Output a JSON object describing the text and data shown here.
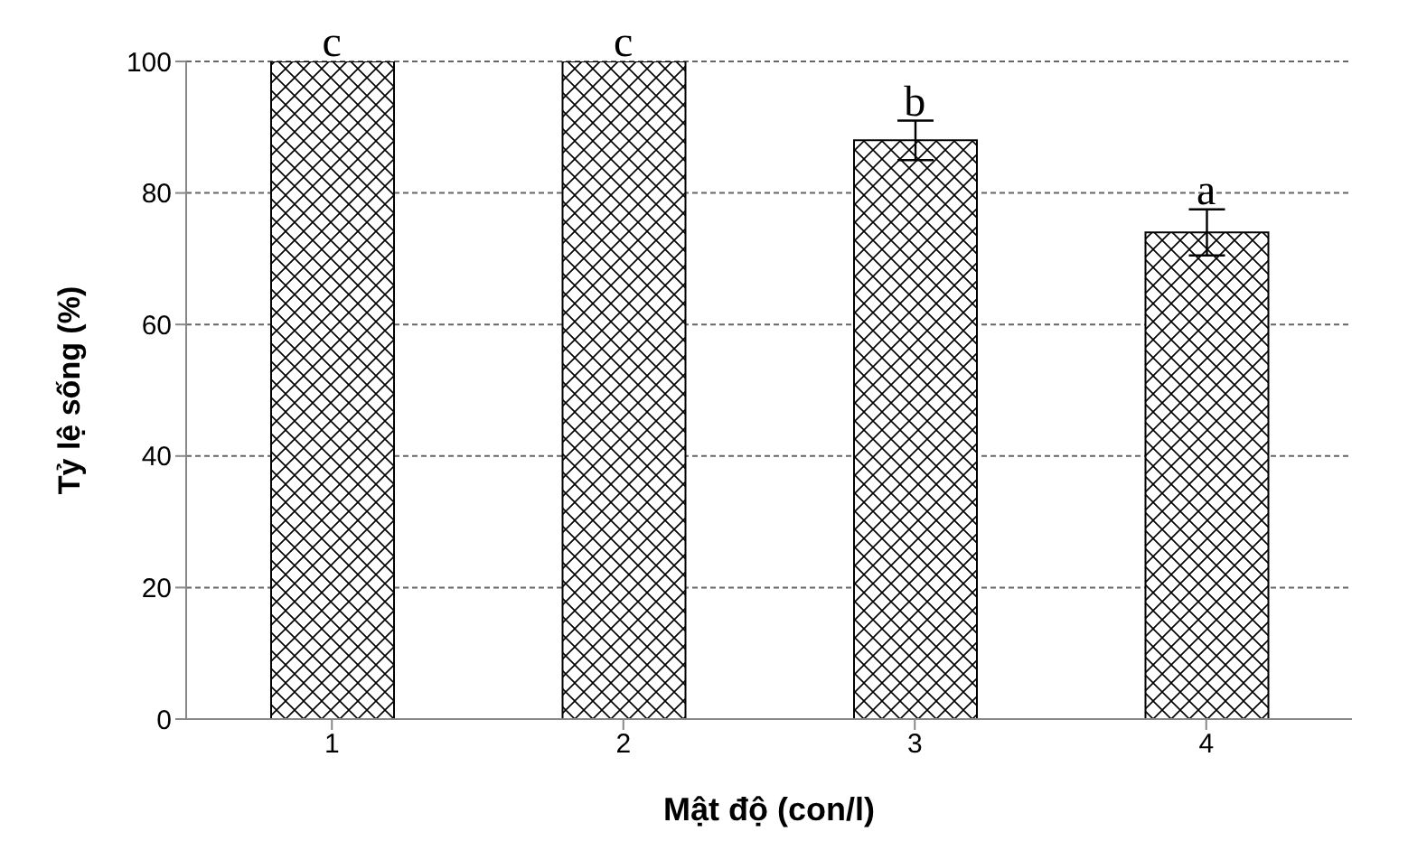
{
  "chart_data": {
    "type": "bar",
    "xlabel": "Mật độ (con/l)",
    "ylabel": "Tỷ lệ sống (%)",
    "categories": [
      "1",
      "2",
      "3",
      "4"
    ],
    "values": [
      100,
      100,
      88,
      74
    ],
    "errors": [
      null,
      null,
      3,
      3.5
    ],
    "color": "#000000",
    "ylim": [
      0,
      100
    ],
    "yticks": [
      0,
      20,
      40,
      60,
      80,
      100
    ],
    "grid": "y",
    "annotations": [
      {
        "text": "c",
        "x": "1",
        "y": 100
      },
      {
        "text": "c",
        "x": "2",
        "y": 100
      },
      {
        "text": "b",
        "x": "3",
        "y": 88
      },
      {
        "text": "a",
        "x": "4",
        "y": 74
      }
    ]
  }
}
